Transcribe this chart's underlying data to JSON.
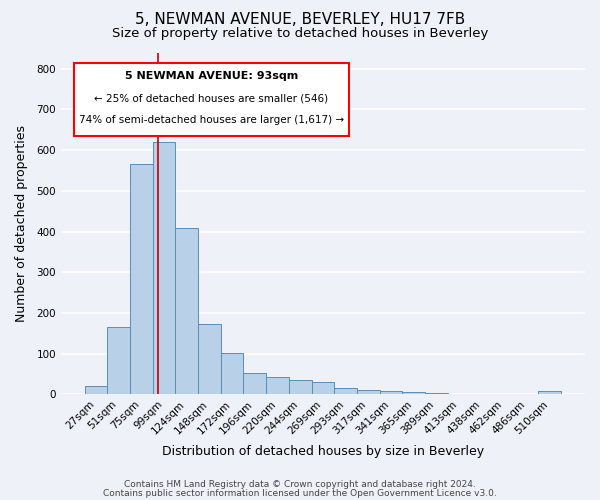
{
  "title": "5, NEWMAN AVENUE, BEVERLEY, HU17 7FB",
  "subtitle": "Size of property relative to detached houses in Beverley",
  "xlabel": "Distribution of detached houses by size in Beverley",
  "ylabel": "Number of detached properties",
  "footnote1": "Contains HM Land Registry data © Crown copyright and database right 2024.",
  "footnote2": "Contains public sector information licensed under the Open Government Licence v3.0.",
  "categories": [
    "27sqm",
    "51sqm",
    "75sqm",
    "99sqm",
    "124sqm",
    "148sqm",
    "172sqm",
    "196sqm",
    "220sqm",
    "244sqm",
    "269sqm",
    "293sqm",
    "317sqm",
    "341sqm",
    "365sqm",
    "389sqm",
    "413sqm",
    "438sqm",
    "462sqm",
    "486sqm",
    "510sqm"
  ],
  "values": [
    20,
    165,
    565,
    620,
    410,
    172,
    102,
    53,
    43,
    35,
    30,
    15,
    10,
    8,
    5,
    3,
    0,
    0,
    0,
    0,
    8
  ],
  "bar_color": "#b8d0e8",
  "bar_edge_color": "#5b8db8",
  "background_color": "#eef2f8",
  "ylim": [
    0,
    840
  ],
  "yticks": [
    0,
    100,
    200,
    300,
    400,
    500,
    600,
    700,
    800
  ],
  "property_label": "5 NEWMAN AVENUE: 93sqm",
  "annotation_line1": "← 25% of detached houses are smaller (546)",
  "annotation_line2": "74% of semi-detached houses are larger (1,617) →",
  "vline_color": "#cc0000",
  "title_fontsize": 11,
  "subtitle_fontsize": 9.5,
  "axis_fontsize": 9,
  "tick_fontsize": 7.5,
  "footnote_fontsize": 6.5
}
